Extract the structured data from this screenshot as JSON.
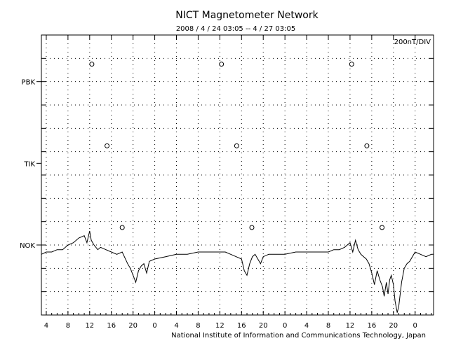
{
  "chart_data": {
    "type": "line",
    "title": "NICT Magnetometer Network",
    "subtitle": "2008 / 4 / 24   03:05 --  4 / 27   03:05",
    "scale_label": "200nT/DIV",
    "footer": "National Institute of Information and Communications Technology, Japan",
    "x_hours_range": [
      3.1,
      75.4
    ],
    "x_tick_hours": [
      4,
      8,
      12,
      16,
      20,
      24,
      28,
      32,
      36,
      40,
      44,
      48,
      52,
      56,
      60,
      64,
      68,
      72
    ],
    "x_tick_labels": [
      "4",
      "8",
      "12",
      "16",
      "20",
      "0",
      "4",
      "8",
      "12",
      "16",
      "20",
      "0",
      "4",
      "8",
      "12",
      "16",
      "20",
      "0"
    ],
    "y_divisions": 12,
    "grid": true,
    "stations": [
      {
        "name": "PBK",
        "baseline_div": 10,
        "markers_hours": [
          12.4,
          36.3,
          60.3
        ],
        "marker_div": 10.75
      },
      {
        "name": "TIK",
        "baseline_div": 6.5,
        "markers_hours": [
          15.2,
          39.1,
          63.1
        ],
        "marker_div": 7.25
      },
      {
        "name": "NOK",
        "baseline_div": 3,
        "markers_hours": [
          18.0,
          41.9,
          65.9
        ],
        "marker_div": 3.75
      }
    ],
    "series": [
      {
        "name": "NOK",
        "x": [
          3.1,
          4.0,
          5.0,
          6.0,
          7.0,
          8.0,
          9.0,
          10.0,
          11.0,
          11.5,
          12.0,
          12.3,
          12.8,
          13.5,
          14.0,
          15.0,
          16.0,
          17.0,
          18.0,
          19.0,
          19.5,
          20.0,
          20.5,
          21.0,
          21.5,
          22.0,
          22.5,
          23.0,
          24.0,
          26.0,
          28.0,
          30.0,
          32.0,
          34.0,
          36.0,
          37.0,
          38.0,
          39.0,
          40.0,
          40.5,
          41.0,
          41.5,
          42.0,
          42.5,
          43.0,
          43.5,
          44.0,
          45.0,
          46.0,
          48.0,
          50.0,
          52.0,
          54.0,
          56.0,
          57.0,
          58.0,
          59.0,
          60.0,
          60.5,
          61.0,
          61.5,
          62.0,
          62.5,
          63.0,
          63.5,
          64.0,
          64.5,
          65.0,
          65.5,
          66.0,
          66.3,
          66.7,
          67.0,
          67.3,
          67.6,
          68.0,
          68.3,
          68.7,
          69.0,
          69.5,
          70.0,
          70.5,
          71.0,
          72.0,
          73.0,
          74.0,
          75.0,
          75.4
        ],
        "values": [
          2.6,
          2.7,
          2.7,
          2.8,
          2.8,
          3.0,
          3.1,
          3.3,
          3.4,
          3.1,
          3.6,
          3.2,
          3.0,
          2.8,
          2.9,
          2.8,
          2.7,
          2.6,
          2.7,
          2.2,
          2.0,
          1.7,
          1.4,
          1.9,
          2.1,
          2.2,
          1.8,
          2.3,
          2.4,
          2.5,
          2.6,
          2.6,
          2.7,
          2.7,
          2.7,
          2.7,
          2.6,
          2.5,
          2.4,
          1.9,
          1.7,
          2.2,
          2.5,
          2.6,
          2.4,
          2.2,
          2.5,
          2.6,
          2.6,
          2.6,
          2.7,
          2.7,
          2.7,
          2.7,
          2.8,
          2.8,
          2.9,
          3.1,
          2.7,
          3.2,
          2.8,
          2.6,
          2.5,
          2.4,
          2.2,
          1.8,
          1.3,
          1.9,
          1.5,
          1.2,
          0.8,
          1.4,
          0.9,
          1.5,
          1.7,
          1.3,
          0.6,
          0.1,
          0.4,
          1.4,
          2.0,
          2.2,
          2.3,
          2.7,
          2.6,
          2.5,
          2.6,
          2.6
        ]
      }
    ]
  }
}
